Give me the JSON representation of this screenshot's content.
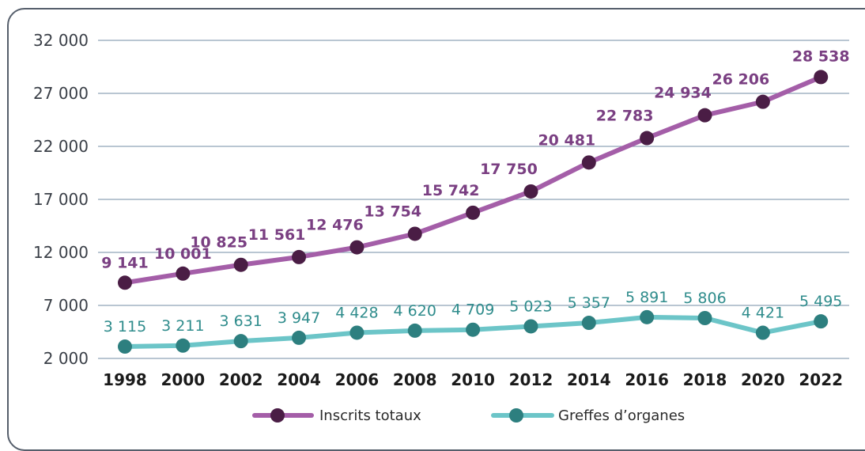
{
  "colors": {
    "inscrits_line": "#a45ea8",
    "inscrits_marker": "#4a1d45",
    "inscrits_label": "#7a3f82",
    "greffes_line": "#6cc5c8",
    "greffes_marker": "#2d7f7f",
    "greffes_label": "#2f8c8c",
    "grid": "#8fa3b8"
  },
  "chart_data": {
    "type": "line",
    "x": [
      "1998",
      "2000",
      "2002",
      "2004",
      "2006",
      "2008",
      "2010",
      "2012",
      "2014",
      "2016",
      "2018",
      "2020",
      "2022"
    ],
    "ylim": [
      2000,
      32000
    ],
    "yticks": [
      2000,
      7000,
      12000,
      17000,
      22000,
      27000,
      32000
    ],
    "ytick_labels": [
      "2 000",
      "7 000",
      "12 000",
      "17 000",
      "22 000",
      "27 000",
      "32 000"
    ],
    "grid": true,
    "legend_position": "bottom",
    "series": [
      {
        "name": "Inscrits totaux",
        "values": [
          9141,
          10001,
          10825,
          11561,
          12476,
          13754,
          15742,
          17750,
          20481,
          22783,
          24934,
          26206,
          28538
        ],
        "labels": [
          "9 141",
          "10 001",
          "10 825",
          "11 561",
          "12 476",
          "13 754",
          "15 742",
          "17 750",
          "20 481",
          "22 783",
          "24 934",
          "26 206",
          "28 538"
        ]
      },
      {
        "name": "Greffes d’organes",
        "values": [
          3115,
          3211,
          3631,
          3947,
          4428,
          4620,
          4709,
          5023,
          5357,
          5891,
          5806,
          4421,
          5495
        ],
        "labels": [
          "3 115",
          "3 211",
          "3 631",
          "3 947",
          "4 428",
          "4 620",
          "4 709",
          "5 023",
          "5 357",
          "5 891",
          "5 806",
          "4 421",
          "5 495"
        ]
      }
    ]
  }
}
